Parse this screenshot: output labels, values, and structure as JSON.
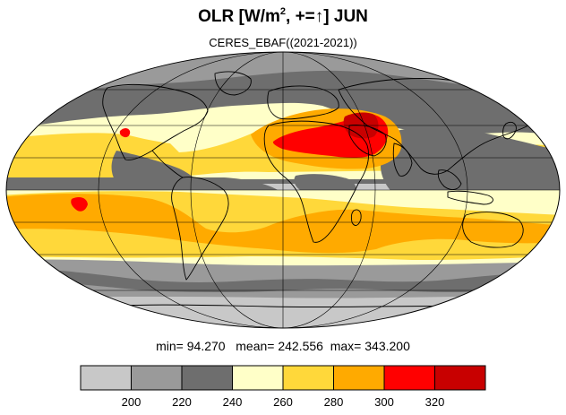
{
  "figure": {
    "title_main": "OLR [W/m",
    "title_sup": "2",
    "title_rest": ", +=↑] JUN",
    "subtitle": "CERES_EBAF((2021-2021))"
  },
  "stats": {
    "min_label": "min=",
    "min_value": "94.270",
    "mean_label": "mean=",
    "mean_value": "242.556",
    "max_label": "max=",
    "max_value": "343.200"
  },
  "colorbar": {
    "colors": [
      "#c8c8c8",
      "#9a9a9a",
      "#6e6e6e",
      "#ffffc8",
      "#ffd83a",
      "#ffaa00",
      "#ff0000",
      "#c80000"
    ],
    "labels": [
      "200",
      "220",
      "240",
      "260",
      "280",
      "300",
      "320"
    ]
  },
  "map_colors": {
    "background": "#c8c8c8",
    "dark": "#6e6e6e",
    "mid": "#9a9a9a",
    "pale": "#ffffc8",
    "yellow": "#ffd83a",
    "orange": "#ffaa00",
    "red": "#ff0000",
    "darkred": "#c80000"
  }
}
